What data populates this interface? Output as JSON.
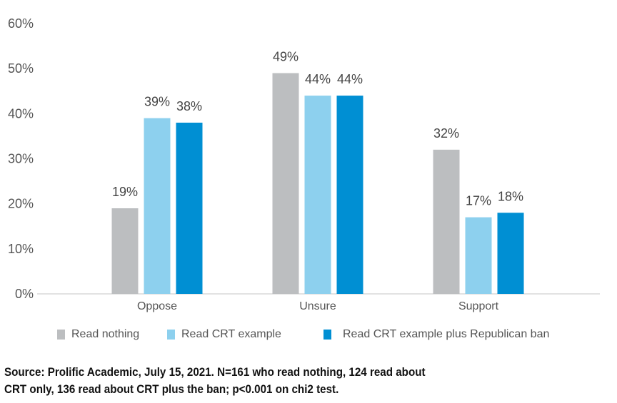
{
  "chart_data": {
    "type": "bar",
    "title": "",
    "xlabel": "",
    "ylabel": "",
    "ylim": [
      0,
      60
    ],
    "yticks": [
      0,
      10,
      20,
      30,
      40,
      50,
      60
    ],
    "ytick_labels": [
      "0%",
      "10%",
      "20%",
      "30%",
      "40%",
      "50%",
      "60%"
    ],
    "grid": false,
    "categories": [
      "Oppose",
      "Unsure",
      "Support"
    ],
    "series": [
      {
        "name": "Read nothing",
        "color": "#bcbec0",
        "values": [
          19,
          49,
          32
        ],
        "labels": [
          "19%",
          "49%",
          "32%"
        ]
      },
      {
        "name": "Read CRT example",
        "color": "#8dd0ee",
        "values": [
          39,
          44,
          17
        ],
        "labels": [
          "39%",
          "44%",
          "17%"
        ]
      },
      {
        "name": "Read CRT example plus Republican ban",
        "color": "#008fd3",
        "values": [
          38,
          44,
          18
        ],
        "labels": [
          "38%",
          "44%",
          "18%"
        ]
      }
    ],
    "legend_position": "bottom"
  },
  "source": {
    "line1": "Source: Prolific Academic, July 15, 2021. N=161 who read nothing, 124 read about",
    "line2": "CRT only, 136 read about CRT plus the ban; p<0.001 on chi2 test."
  }
}
